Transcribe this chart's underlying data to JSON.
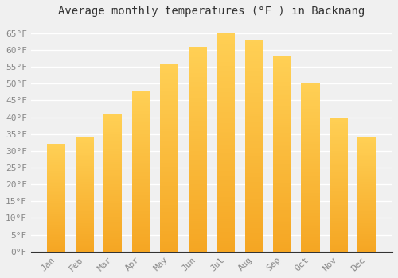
{
  "title": "Average monthly temperatures (°F ) in Backnang",
  "months": [
    "Jan",
    "Feb",
    "Mar",
    "Apr",
    "May",
    "Jun",
    "Jul",
    "Aug",
    "Sep",
    "Oct",
    "Nov",
    "Dec"
  ],
  "values": [
    32,
    34,
    41,
    48,
    56,
    61,
    65,
    63,
    58,
    50,
    40,
    34
  ],
  "bar_color_bottom": "#F5A623",
  "bar_color_top": "#FFD055",
  "ylim": [
    0,
    68
  ],
  "yticks": [
    0,
    5,
    10,
    15,
    20,
    25,
    30,
    35,
    40,
    45,
    50,
    55,
    60,
    65
  ],
  "ytick_labels": [
    "0°F",
    "5°F",
    "10°F",
    "15°F",
    "20°F",
    "25°F",
    "30°F",
    "35°F",
    "40°F",
    "45°F",
    "50°F",
    "55°F",
    "60°F",
    "65°F"
  ],
  "background_color": "#f0f0f0",
  "grid_color": "#ffffff",
  "title_fontsize": 10,
  "tick_fontsize": 8,
  "bar_width": 0.65,
  "font_family": "monospace"
}
